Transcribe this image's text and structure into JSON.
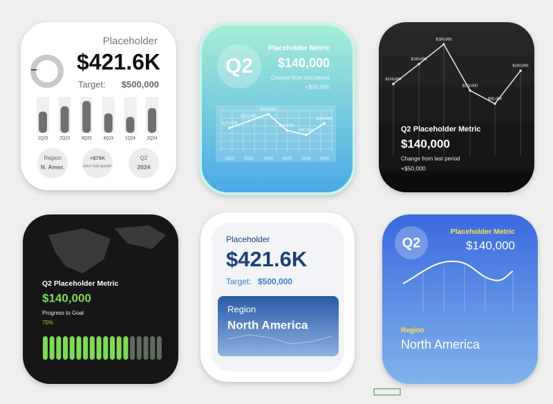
{
  "card1": {
    "title": "Placeholder",
    "value": "$421.6K",
    "target_label": "Target:",
    "target": "$500,000",
    "chart": {
      "categories": [
        "1Q23",
        "2Q23",
        "3Q23",
        "4Q23",
        "1Q24",
        "2Q24"
      ],
      "values": [
        120000,
        150000,
        180000,
        110000,
        90000,
        140000
      ]
    },
    "badges": [
      {
        "top": "Region",
        "bottom": "N. Amer."
      },
      {
        "top": "+$75K",
        "bottom": "since last quarter"
      },
      {
        "top": "Q2",
        "bottom": "2024"
      }
    ]
  },
  "card2": {
    "badge": "Q2",
    "title": "Placeholder Metric",
    "value": "$140,000",
    "change_label": "Change from last period",
    "change": "+$50,000",
    "chart": {
      "categories": [
        "1Q23",
        "2Q23",
        "3Q23",
        "4Q23",
        "1Q24",
        "2Q24"
      ],
      "values": [
        120000,
        150000,
        180000,
        110000,
        90000,
        140000
      ],
      "value_labels": [
        "$120,000",
        "$150,000",
        "$180,000",
        "$110,000",
        "$90,000",
        "$140,000"
      ]
    }
  },
  "card3": {
    "chart": {
      "values": [
        120000,
        150000,
        180000,
        110000,
        90000,
        140000
      ],
      "value_labels": [
        "$120,000",
        "$150,000",
        "$180,000",
        "$110,000",
        "$90,000",
        "$140,000"
      ]
    },
    "title": "Q2 Placeholder Metric",
    "value": "$140,000",
    "change_label": "Change from last period",
    "change": "+$50,000"
  },
  "card4": {
    "title": "Q2 Placeholder Metric",
    "value": "$140,000",
    "progress_label": "Progress to Goal",
    "progress": {
      "value": 75,
      "label": "75%"
    }
  },
  "card5": {
    "title": "Placeholder",
    "value": "$421.6K",
    "target_label": "Target:",
    "target": "$500,000",
    "region_label": "Region",
    "region": "North America"
  },
  "card6": {
    "badge": "Q2",
    "title": "Placeholder Metric",
    "value": "$140,000",
    "region_label": "Region",
    "region": "North America"
  }
}
